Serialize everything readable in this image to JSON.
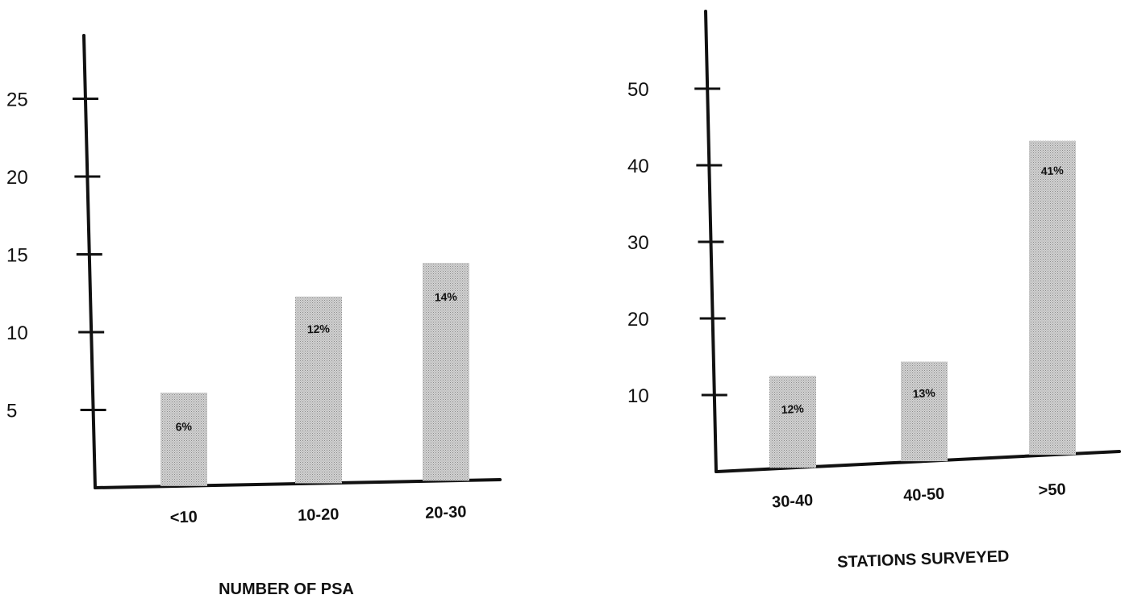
{
  "chart_data": [
    {
      "type": "bar",
      "title": "",
      "xlabel": "NUMBER OF PSA",
      "ylabel": "",
      "categories": [
        "<10",
        "10-20",
        "20-30"
      ],
      "values": [
        6,
        12,
        14
      ],
      "data_labels": [
        "6%",
        "12%",
        "14%"
      ],
      "yticks": [
        5,
        10,
        15,
        20,
        25
      ],
      "ylim": [
        0,
        30
      ],
      "grid": false,
      "colors": {
        "bar": "#bdbdbd",
        "axis": "#111111"
      }
    },
    {
      "type": "bar",
      "title": "",
      "xlabel": "STATIONS SURVEYED",
      "ylabel": "",
      "categories": [
        "30-40",
        "40-50",
        ">50"
      ],
      "values": [
        12,
        13,
        41
      ],
      "data_labels": [
        "12%",
        "13%",
        "41%"
      ],
      "yticks": [
        10,
        20,
        30,
        40,
        50
      ],
      "ylim": [
        0,
        58
      ],
      "grid": false,
      "colors": {
        "bar": "#bdbdbd",
        "axis": "#111111"
      }
    }
  ]
}
